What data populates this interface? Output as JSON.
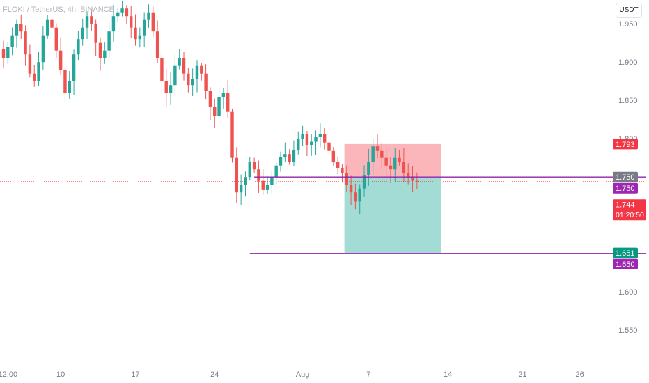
{
  "header": {
    "symbol_title": "FLOKI / TetherUS, 4h, BINANCE",
    "currency": "USDT"
  },
  "colors": {
    "up": "#26a69a",
    "down": "#ef5350",
    "stop_zone": "#fbb6bb",
    "target_zone": "#a3dcd4",
    "level_line": "#8e24aa",
    "last_price": "#f23645",
    "entry_label": "#787b86",
    "level_label": "#9c27b0",
    "target_label": "#089981",
    "axis_text": "#787b86"
  },
  "chart_data": {
    "type": "candlestick",
    "title": "FLOKI / TetherUS, 4h, BINANCE",
    "y_range": [
      1.522,
      1.972
    ],
    "x_range": [
      0,
      148
    ],
    "grid": false,
    "y_ticks": [
      "1.550",
      "1.600",
      "1.650",
      "1.700",
      "1.750",
      "1.800",
      "1.850",
      "1.900",
      "1.950"
    ],
    "x_ticks": [
      {
        "label": "12:00",
        "x": 1
      },
      {
        "label": "10",
        "x": 13
      },
      {
        "label": "17",
        "x": 30
      },
      {
        "label": "24",
        "x": 48
      },
      {
        "label": "Aug",
        "x": 68
      },
      {
        "label": "7",
        "x": 83
      },
      {
        "label": "14",
        "x": 101
      },
      {
        "label": "21",
        "x": 118
      },
      {
        "label": "26",
        "x": 131
      }
    ],
    "candles_close": [
      1.905,
      1.92,
      1.935,
      1.95,
      1.94,
      1.91,
      1.885,
      1.875,
      1.9,
      1.935,
      1.955,
      1.945,
      1.915,
      1.89,
      1.86,
      1.875,
      1.91,
      1.93,
      1.945,
      1.96,
      1.95,
      1.925,
      1.905,
      1.915,
      1.94,
      1.96,
      1.965,
      1.97,
      1.96,
      1.945,
      1.93,
      1.935,
      1.955,
      1.965,
      1.94,
      1.905,
      1.875,
      1.86,
      1.87,
      1.895,
      1.905,
      1.885,
      1.87,
      1.878,
      1.895,
      1.885,
      1.862,
      1.842,
      1.83,
      1.854,
      1.86,
      1.835,
      1.775,
      1.73,
      1.74,
      1.75,
      1.77,
      1.76,
      1.745,
      1.733,
      1.74,
      1.75,
      1.765,
      1.776,
      1.78,
      1.77,
      1.785,
      1.8,
      1.806,
      1.792,
      1.796,
      1.802,
      1.806,
      1.795,
      1.784,
      1.77,
      1.762,
      1.755,
      1.74,
      1.73,
      1.718,
      1.735,
      1.752,
      1.77,
      1.79,
      1.784,
      1.775,
      1.765,
      1.76,
      1.775,
      1.77,
      1.755,
      1.75,
      1.745,
      1.744
    ],
    "stop_zone": {
      "x_start": 77.5,
      "x_end": 99.5,
      "y_from": 1.7496,
      "y_to": 1.793
    },
    "target_zone": {
      "x_start": 77.5,
      "x_end": 99.5,
      "y_from": 1.651,
      "y_to": 1.7496
    },
    "levels": [
      {
        "y": 1.75,
        "x_start": 57,
        "x_end": 148
      },
      {
        "y": 1.65,
        "x_start": 56,
        "x_end": 148
      }
    ],
    "last_price_line": 1.744,
    "price_labels": [
      {
        "value": 1.793,
        "text": "1.793",
        "role": "stop"
      },
      {
        "value": 1.75,
        "text": "1.750",
        "role": "entry"
      },
      {
        "value": 1.75,
        "text": "1.750",
        "role": "level"
      },
      {
        "value": 1.744,
        "text": "1.744",
        "sub": "01:20:50",
        "role": "last"
      },
      {
        "value": 1.651,
        "text": "1.651",
        "role": "target"
      },
      {
        "value": 1.65,
        "text": "1.650",
        "role": "level"
      }
    ]
  }
}
